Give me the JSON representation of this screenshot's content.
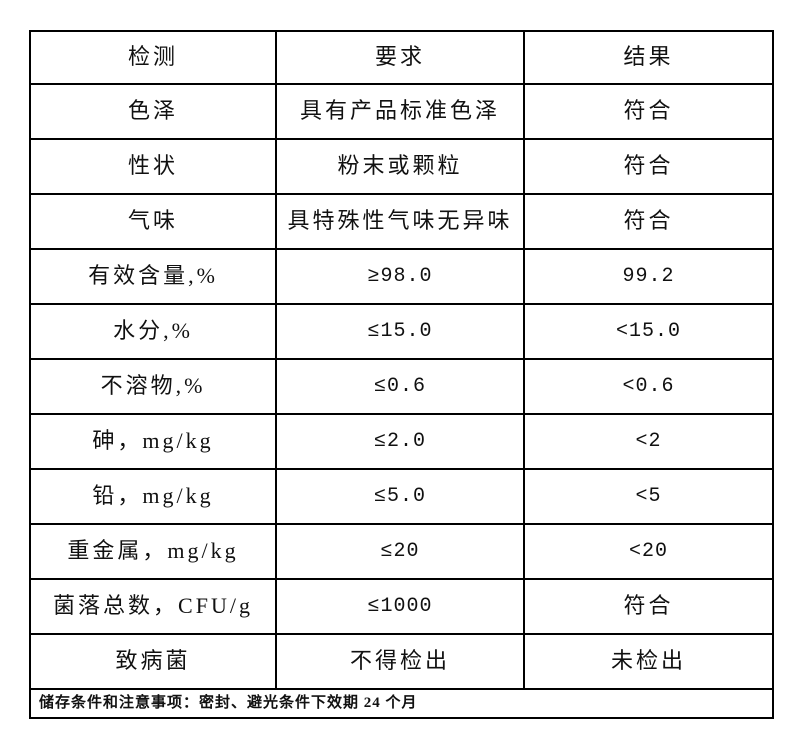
{
  "colors": {
    "background": "#ffffff",
    "border": "#000000",
    "text": "#111111"
  },
  "table": {
    "headers": {
      "test": "检测",
      "requirement": "要求",
      "result": "结果"
    },
    "rows": [
      {
        "test": "色泽",
        "requirement": "具有产品标准色泽",
        "result": "符合"
      },
      {
        "test": "性状",
        "requirement": "粉末或颗粒",
        "result": "符合"
      },
      {
        "test": "气味",
        "requirement": "具特殊性气味无异味",
        "result": "符合"
      },
      {
        "test": "有效含量,%",
        "requirement": "≥98.0",
        "result": "99.2"
      },
      {
        "test": "水分,%",
        "requirement": "≤15.0",
        "result": "<15.0"
      },
      {
        "test": "不溶物,%",
        "requirement": "≤0.6",
        "result": "<0.6"
      },
      {
        "test": "砷，mg/kg",
        "requirement": "≤2.0",
        "result": "<2"
      },
      {
        "test": "铅，mg/kg",
        "requirement": "≤5.0",
        "result": "<5"
      },
      {
        "test": "重金属，mg/kg",
        "requirement": "≤20",
        "result": "<20"
      },
      {
        "test": "菌落总数，CFU/g",
        "requirement": "≤1000",
        "result": "符合"
      },
      {
        "test": "致病菌",
        "requirement": "不得检出",
        "result": "未检出"
      }
    ],
    "footer_note": "储存条件和注意事项：密封、避光条件下效期 24 个月"
  }
}
